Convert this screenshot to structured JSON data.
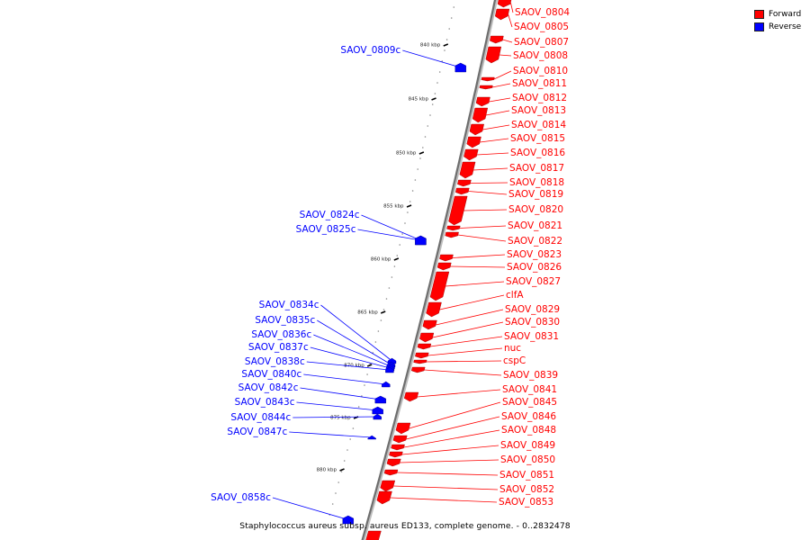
{
  "legend": {
    "forward_label": "Forward",
    "reverse_label": "Reverse",
    "forward_color": "#ff0000",
    "reverse_color": "#0000ff"
  },
  "caption": "Staphylococcus aureus subsp. aureus ED133, complete genome. - 0..2832478",
  "ticks": [
    "840 kbp",
    "845 kbp",
    "850 kbp",
    "855 kbp",
    "860 kbp",
    "865 kbp",
    "870 kbp",
    "875 kbp",
    "880 kbp"
  ],
  "forward_genes": [
    "SAOV_0804",
    "SAOV_0805",
    "SAOV_0807",
    "SAOV_0808",
    "SAOV_0810",
    "SAOV_0811",
    "SAOV_0812",
    "SAOV_0813",
    "SAOV_0814",
    "SAOV_0815",
    "SAOV_0816",
    "SAOV_0817",
    "SAOV_0818",
    "SAOV_0819",
    "SAOV_0820",
    "SAOV_0821",
    "SAOV_0822",
    "SAOV_0823",
    "SAOV_0826",
    "SAOV_0827",
    "clfA",
    "SAOV_0829",
    "SAOV_0830",
    "SAOV_0831",
    "nuc",
    "cspC",
    "SAOV_0839",
    "SAOV_0841",
    "SAOV_0845",
    "SAOV_0846",
    "SAOV_0848",
    "SAOV_0849",
    "SAOV_0850",
    "SAOV_0851",
    "SAOV_0852",
    "SAOV_0853"
  ],
  "reverse_genes": [
    "SAOV_0809c",
    "SAOV_0824c",
    "SAOV_0825c",
    "SAOV_0834c",
    "SAOV_0835c",
    "SAOV_0836c",
    "SAOV_0837c",
    "SAOV_0838c",
    "SAOV_0840c",
    "SAOV_0842c",
    "SAOV_0843c",
    "SAOV_0844c",
    "SAOV_0847c",
    "SAOV_0858c"
  ]
}
